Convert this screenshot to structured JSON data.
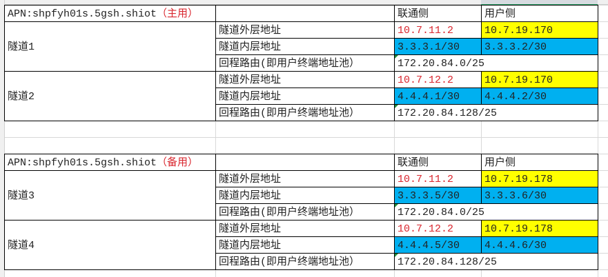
{
  "colors": {
    "red": "#d9262e",
    "yellow": "#ffff00",
    "blue": "#00b0f0"
  },
  "tables": [
    {
      "apn": "APN:shpfyh01s.5gsh.shiot",
      "apn_role": "（主用）",
      "header": {
        "unicom": "联通侧",
        "user": "用户侧"
      },
      "tunnels": [
        {
          "name": "隧道1",
          "outer_label": "隧道外层地址",
          "outer_unicom": "10.7.11.2",
          "outer_user": "10.7.19.170",
          "inner_label": "隧道内层地址",
          "inner_unicom": "3.3.3.1/30",
          "inner_user": "3.3.3.2/30",
          "route_label": "回程路由(即用户终端地址池）",
          "route": "172.20.84.0/25"
        },
        {
          "name": "隧道2",
          "outer_label": "隧道外层地址",
          "outer_unicom": "10.7.12.2",
          "outer_user": "10.7.19.170",
          "inner_label": "隧道内层地址",
          "inner_unicom": "4.4.4.1/30",
          "inner_user": "4.4.4.2/30",
          "route_label": "回程路由(即用户终端地址池）",
          "route": "172.20.84.128/25"
        }
      ]
    },
    {
      "apn": "APN:shpfyh01s.5gsh.shiot",
      "apn_role": "（备用）",
      "header": {
        "unicom": "联通侧",
        "user": "用户侧"
      },
      "tunnels": [
        {
          "name": "隧道3",
          "outer_label": "隧道外层地址",
          "outer_unicom": "10.7.11.2",
          "outer_user": "10.7.19.178",
          "inner_label": "隧道内层地址",
          "inner_unicom": "3.3.3.5/30",
          "inner_user": "3.3.3.6/30",
          "route_label": "回程路由(即用户终端地址池）",
          "route": "172.20.84.0/25"
        },
        {
          "name": "隧道4",
          "outer_label": "隧道外层地址",
          "outer_unicom": "10.7.12.2",
          "outer_user": "10.7.19.178",
          "inner_label": "隧道内层地址",
          "inner_unicom": "4.4.4.5/30",
          "inner_user": "4.4.4.6/30",
          "route_label": "回程路由(即用户终端地址池）",
          "route": "172.20.84.128/25"
        }
      ]
    }
  ]
}
